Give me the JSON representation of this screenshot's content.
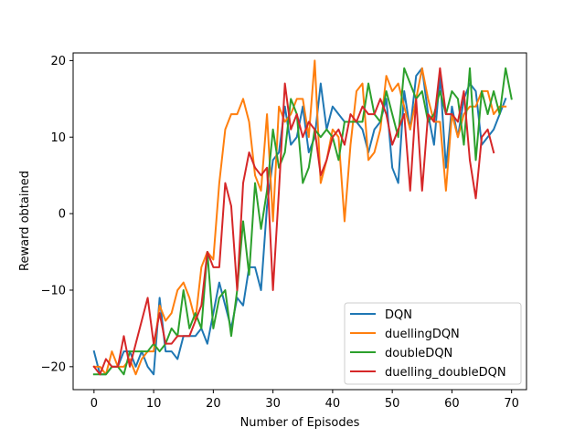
{
  "chart_data": {
    "type": "line",
    "title": "",
    "xlabel": "Number of Episodes",
    "ylabel": "Reward obtained",
    "xlim": [
      -3.5,
      72.5
    ],
    "ylim": [
      -23,
      21
    ],
    "xticks": [
      0,
      10,
      20,
      30,
      40,
      50,
      60,
      70
    ],
    "yticks": [
      -20,
      -10,
      0,
      10,
      20
    ],
    "grid": false,
    "legend_position": "lower-right",
    "series": [
      {
        "name": "DQN",
        "color": "#1f77b4",
        "values": [
          -18,
          -21,
          -21,
          -20,
          -20,
          -18,
          -18,
          -20,
          -18,
          -20,
          -21,
          -11,
          -18,
          -18,
          -19,
          -16,
          -16,
          -16,
          -15,
          -17,
          -13,
          -9,
          -12,
          -15,
          -11,
          -12,
          -7,
          -7,
          -10,
          1,
          7,
          8,
          14,
          9,
          10,
          14,
          8,
          10,
          17,
          11,
          14,
          13,
          12,
          12,
          12,
          11,
          8,
          11,
          12,
          15,
          6,
          4,
          16,
          11,
          18,
          19,
          13,
          9,
          18,
          6,
          14,
          10,
          15,
          17,
          16,
          9,
          10,
          11,
          13,
          15
        ]
      },
      {
        "name": "duellingDQN",
        "color": "#ff7f0e",
        "values": [
          -20,
          -20,
          -21,
          -18,
          -20,
          -20,
          -19,
          -21,
          -19,
          -18,
          -18,
          -12,
          -14,
          -13,
          -10,
          -9,
          -11,
          -14,
          -7,
          -5,
          -6,
          4,
          11,
          13,
          13,
          15,
          12,
          5,
          3,
          13,
          -1,
          14,
          12,
          13,
          15,
          15,
          10,
          20,
          4,
          7,
          11,
          10,
          -1,
          9,
          16,
          17,
          7,
          8,
          11,
          18,
          16,
          17,
          14,
          11,
          15,
          19,
          15,
          12,
          12,
          3,
          13,
          10,
          13,
          14,
          14,
          16,
          16,
          13,
          14,
          14
        ]
      },
      {
        "name": "doubleDQN",
        "color": "#2ca02c",
        "values": [
          -21,
          -21,
          -21,
          -20,
          -20,
          -21,
          -18,
          -18,
          -18,
          -18,
          -17,
          -18,
          -17,
          -15,
          -16,
          -10,
          -15,
          -13,
          -15,
          -5,
          -15,
          -11,
          -10,
          -16,
          -10,
          -1,
          -8,
          4,
          -2,
          3,
          11,
          6,
          8,
          15,
          13,
          4,
          6,
          11,
          10,
          11,
          10,
          7,
          12,
          12,
          12,
          12,
          17,
          13,
          12,
          16,
          13,
          10,
          19,
          17,
          15,
          16,
          12,
          13,
          16,
          13,
          16,
          15,
          9,
          19,
          7,
          16,
          13,
          16,
          13,
          19,
          15
        ]
      },
      {
        "name": "duelling_doubleDQN",
        "color": "#d62728",
        "values": [
          -20,
          -21,
          -19,
          -20,
          -20,
          -16,
          -20,
          -17,
          -14,
          -11,
          -17,
          -13,
          -17,
          -17,
          -16,
          -16,
          -16,
          -14,
          -12,
          -5,
          -7,
          -7,
          4,
          1,
          -10,
          4,
          8,
          6,
          5,
          6,
          -10,
          3,
          17,
          11,
          13,
          10,
          12,
          11,
          5,
          7,
          10,
          11,
          9,
          13,
          12,
          14,
          13,
          13,
          15,
          13,
          9,
          11,
          13,
          3,
          15,
          3,
          13,
          12,
          19,
          13,
          13,
          12,
          16,
          7,
          2,
          10,
          11,
          8
        ]
      }
    ]
  }
}
